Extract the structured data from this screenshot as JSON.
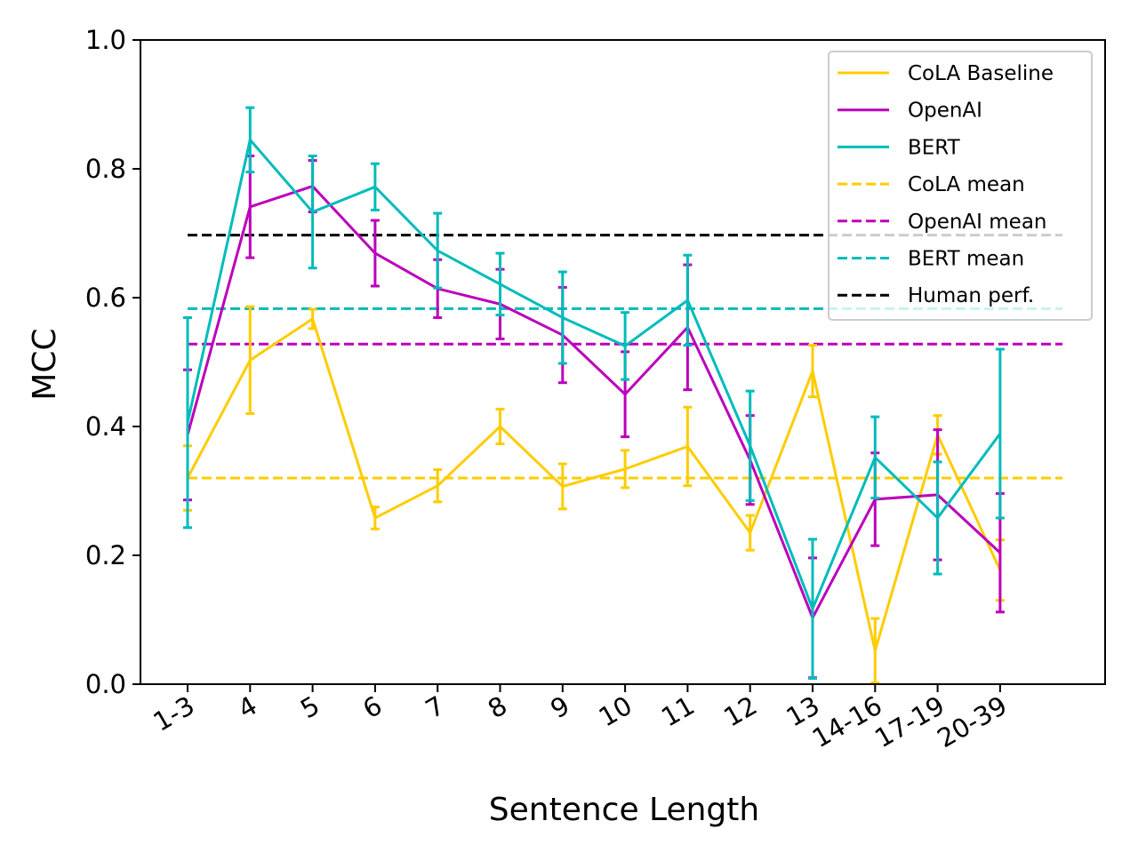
{
  "chart_data": {
    "type": "line",
    "title": "",
    "xlabel": "Sentence Length",
    "ylabel": "MCC",
    "ylim": [
      0.0,
      1.0
    ],
    "yticks": [
      "0.0",
      "0.2",
      "0.4",
      "0.6",
      "0.8",
      "1.0"
    ],
    "categories": [
      "1-3",
      "4",
      "5",
      "6",
      "7",
      "8",
      "9",
      "10",
      "11",
      "12",
      "13",
      "14-16",
      "17-19",
      "20-39"
    ],
    "grid": false,
    "legend_position": "top-right",
    "series": [
      {
        "name": "CoLA Baseline",
        "color": "#ffcc00",
        "values": [
          0.32,
          0.503,
          0.567,
          0.258,
          0.308,
          0.4,
          0.307,
          0.334,
          0.369,
          0.235,
          0.486,
          0.052,
          0.387,
          0.177
        ],
        "err": [
          0.05,
          0.083,
          0.015,
          0.017,
          0.025,
          0.027,
          0.035,
          0.029,
          0.061,
          0.027,
          0.04,
          0.05,
          0.03,
          0.047
        ]
      },
      {
        "name": "OpenAI",
        "color": "#bb00bb",
        "values": [
          0.387,
          0.741,
          0.773,
          0.669,
          0.614,
          0.59,
          0.542,
          0.45,
          0.554,
          0.348,
          0.103,
          0.287,
          0.294,
          0.204
        ],
        "err": [
          0.101,
          0.079,
          0.04,
          0.051,
          0.045,
          0.054,
          0.074,
          0.066,
          0.097,
          0.069,
          0.093,
          0.072,
          0.101,
          0.092
        ]
      },
      {
        "name": "BERT",
        "color": "#00bbbb",
        "values": [
          0.406,
          0.845,
          0.733,
          0.772,
          0.673,
          0.621,
          0.569,
          0.525,
          0.596,
          0.37,
          0.117,
          0.352,
          0.258,
          0.389
        ],
        "err": [
          0.163,
          0.05,
          0.087,
          0.036,
          0.058,
          0.048,
          0.071,
          0.052,
          0.07,
          0.085,
          0.108,
          0.063,
          0.087,
          0.131
        ]
      }
    ],
    "reference_lines": [
      {
        "name": "CoLA mean",
        "color": "#ffcc00",
        "value": 0.32
      },
      {
        "name": "OpenAI mean",
        "color": "#bb00bb",
        "value": 0.528
      },
      {
        "name": "BERT mean",
        "color": "#00bbbb",
        "value": 0.583
      },
      {
        "name": "Human perf.",
        "color": "#000000",
        "value": 0.697
      }
    ]
  }
}
